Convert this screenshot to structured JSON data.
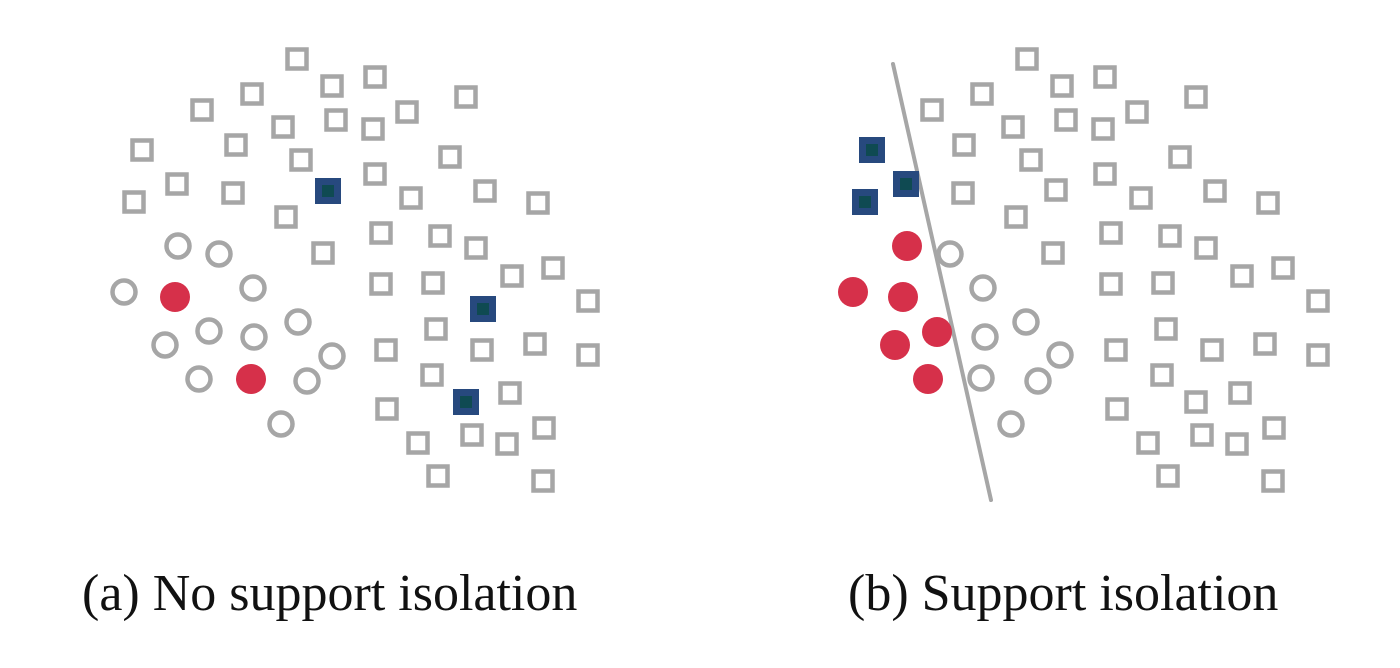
{
  "panels": [
    {
      "id": "a",
      "caption": "(a) No support isolation",
      "has_separator": false
    },
    {
      "id": "b",
      "caption": "(b) Support isolation",
      "has_separator": true
    }
  ],
  "legend_semantics": {
    "hollow_square": "unlabeled sample (class square)",
    "hollow_circle": "unlabeled sample (class circle)",
    "filled_square": "support sample (class square)",
    "filled_circle": "support sample (class circle)"
  },
  "colors": {
    "unlabeled": "#a6a6a6",
    "support_square_fill": "#27497e",
    "support_square_inner": "#0f4a52",
    "support_circle": "#d6304a",
    "separator": "#a6a6a6"
  }
}
